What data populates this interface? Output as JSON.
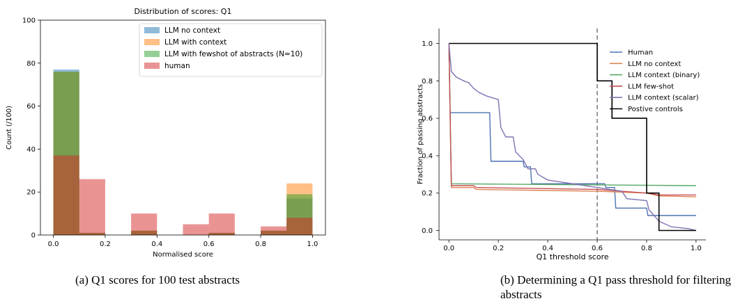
{
  "captions": {
    "left": "(a) Q1 scores for 100 test abstracts",
    "right": "(b) Determining a Q1 pass threshold for filtering abstracts"
  },
  "chart_data": [
    {
      "type": "bar",
      "title": "Distribution of scores: Q1",
      "xlabel": "Normalised score",
      "ylabel": "Count (/100)",
      "xlim": [
        -0.05,
        1.05
      ],
      "ylim": [
        0,
        100
      ],
      "xticks": [
        "0.0",
        "0.2",
        "0.4",
        "0.6",
        "0.8",
        "1.0"
      ],
      "yticks": [
        "0",
        "20",
        "40",
        "60",
        "80",
        "100"
      ],
      "bin_edges": [
        0,
        0.1,
        0.2,
        0.3,
        0.4,
        0.5,
        0.6,
        0.7,
        0.8,
        0.9,
        1.0
      ],
      "grid": false,
      "legend_position": "top-right",
      "series": [
        {
          "name": "LLM no context",
          "color": "#1f77b4",
          "values": [
            77,
            1,
            0,
            2,
            0,
            0,
            1,
            0,
            2,
            17
          ]
        },
        {
          "name": "LLM with context",
          "color": "#ff7f0e",
          "values": [
            76,
            1,
            0,
            2,
            0,
            0,
            1,
            0,
            2,
            24
          ]
        },
        {
          "name": "LLM with fewshot of abstracts (N=10)",
          "color": "#2ca02c",
          "values": [
            76,
            1,
            0,
            2,
            0,
            0,
            1,
            0,
            2,
            19
          ]
        },
        {
          "name": "human",
          "color": "#d62728",
          "values": [
            37,
            26,
            0,
            10,
            0,
            5,
            10,
            0,
            4,
            8
          ]
        }
      ]
    },
    {
      "type": "line",
      "title": "",
      "xlabel": "Q1 threshold score",
      "ylabel": "Fraction of passing abstracts",
      "xlim": [
        -0.04,
        1.04
      ],
      "ylim": [
        -0.05,
        1.08
      ],
      "xticks": [
        "0.0",
        "0.2",
        "0.4",
        "0.6",
        "0.8",
        "1.0"
      ],
      "yticks": [
        "0.0",
        "0.2",
        "0.4",
        "0.6",
        "0.8",
        "1.0"
      ],
      "grid": false,
      "legend_position": "top-right",
      "vline": 0.6,
      "series": [
        {
          "name": "Human",
          "color": "#4c72b0",
          "points": [
            [
              0,
              1.0
            ],
            [
              0.005,
              0.63
            ],
            [
              0.165,
              0.63
            ],
            [
              0.17,
              0.37
            ],
            [
              0.3,
              0.37
            ],
            [
              0.305,
              0.34
            ],
            [
              0.33,
              0.34
            ],
            [
              0.335,
              0.25
            ],
            [
              0.63,
              0.25
            ],
            [
              0.635,
              0.23
            ],
            [
              0.67,
              0.23
            ],
            [
              0.675,
              0.12
            ],
            [
              0.8,
              0.12
            ],
            [
              0.805,
              0.08
            ],
            [
              1.0,
              0.08
            ]
          ]
        },
        {
          "name": "LLM no context",
          "color": "#dd8452",
          "points": [
            [
              0,
              1.0
            ],
            [
              0.01,
              0.23
            ],
            [
              0.1,
              0.23
            ],
            [
              0.11,
              0.22
            ],
            [
              0.6,
              0.21
            ],
            [
              0.8,
              0.2
            ],
            [
              0.85,
              0.185
            ],
            [
              1.0,
              0.18
            ]
          ]
        },
        {
          "name": "LLM context (binary)",
          "color": "#55a868",
          "points": [
            [
              0,
              1.0
            ],
            [
              0.01,
              0.25
            ],
            [
              1.0,
              0.24
            ]
          ]
        },
        {
          "name": "LLM few-shot",
          "color": "#c44e52",
          "points": [
            [
              0,
              1.0
            ],
            [
              0.01,
              0.24
            ],
            [
              0.1,
              0.24
            ],
            [
              0.11,
              0.23
            ],
            [
              0.6,
              0.22
            ],
            [
              0.8,
              0.2
            ],
            [
              0.85,
              0.19
            ],
            [
              1.0,
              0.19
            ]
          ]
        },
        {
          "name": "LLM context (scalar)",
          "color": "#8172b2",
          "points": [
            [
              0,
              1.0
            ],
            [
              0.01,
              0.85
            ],
            [
              0.03,
              0.82
            ],
            [
              0.06,
              0.8
            ],
            [
              0.08,
              0.79
            ],
            [
              0.1,
              0.76
            ],
            [
              0.12,
              0.74
            ],
            [
              0.15,
              0.72
            ],
            [
              0.2,
              0.7
            ],
            [
              0.21,
              0.55
            ],
            [
              0.23,
              0.5
            ],
            [
              0.26,
              0.5
            ],
            [
              0.27,
              0.42
            ],
            [
              0.3,
              0.38
            ],
            [
              0.32,
              0.33
            ],
            [
              0.35,
              0.33
            ],
            [
              0.36,
              0.3
            ],
            [
              0.4,
              0.27
            ],
            [
              0.5,
              0.25
            ],
            [
              0.6,
              0.23
            ],
            [
              0.7,
              0.21
            ],
            [
              0.72,
              0.17
            ],
            [
              0.8,
              0.16
            ],
            [
              0.81,
              0.11
            ],
            [
              0.85,
              0.05
            ],
            [
              0.9,
              0.02
            ],
            [
              0.97,
              0.01
            ],
            [
              1.0,
              0.0
            ]
          ]
        },
        {
          "name": "Postive controls",
          "color": "#000000",
          "points": [
            [
              0,
              1.0
            ],
            [
              0.6,
              1.0
            ],
            [
              0.6,
              0.8
            ],
            [
              0.66,
              0.8
            ],
            [
              0.66,
              0.6
            ],
            [
              0.8,
              0.6
            ],
            [
              0.8,
              0.2
            ],
            [
              0.85,
              0.2
            ],
            [
              0.85,
              0.0
            ],
            [
              1.0,
              0.0
            ]
          ]
        }
      ]
    }
  ]
}
